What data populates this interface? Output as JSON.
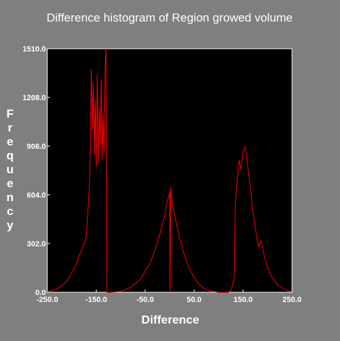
{
  "chart_data": {
    "type": "line",
    "title": "Difference histogram of Region growed volume",
    "x_label": "Difference",
    "y_label": "Frequency",
    "xlim": [
      -250,
      250
    ],
    "ylim": [
      0,
      1510
    ],
    "xticks": [
      {
        "value": -250,
        "label": "-250.0"
      },
      {
        "value": -150,
        "label": "-150.0"
      },
      {
        "value": -50,
        "label": "-50.0"
      },
      {
        "value": 50,
        "label": "50.0"
      },
      {
        "value": 150,
        "label": "150.0"
      },
      {
        "value": 250,
        "label": "250.0"
      }
    ],
    "yticks": [
      {
        "value": 0,
        "label": "0.0"
      },
      {
        "value": 302,
        "label": "302.0"
      },
      {
        "value": 604,
        "label": "604.0"
      },
      {
        "value": 906,
        "label": "906.0"
      },
      {
        "value": 1208,
        "label": "1208.0"
      },
      {
        "value": 1510,
        "label": "1510.0"
      }
    ],
    "x": [
      -250,
      -240,
      -230,
      -220,
      -210,
      -200,
      -190,
      -185,
      -180,
      -175,
      -170,
      -167,
      -164,
      -162,
      -160,
      -158,
      -156,
      -154,
      -152,
      -150,
      -148,
      -146,
      -144,
      -142,
      -140,
      -138,
      -136,
      -134,
      -132,
      -130,
      -128,
      -120,
      -100,
      -80,
      -60,
      -40,
      -30,
      -20,
      -10,
      -5,
      0,
      1,
      2,
      5,
      10,
      20,
      30,
      40,
      50,
      60,
      70,
      80,
      90,
      100,
      120,
      125,
      130,
      132,
      134,
      138,
      142,
      146,
      150,
      154,
      158,
      162,
      166,
      170,
      174,
      178,
      182,
      186,
      190,
      194,
      200,
      210,
      220,
      230,
      240,
      250
    ],
    "series": [
      {
        "name": "Frequency",
        "color": "#ff0000",
        "values": [
          5,
          10,
          20,
          40,
          70,
          120,
          180,
          230,
          260,
          300,
          350,
          500,
          650,
          900,
          1380,
          1000,
          1300,
          850,
          1200,
          780,
          1350,
          800,
          1150,
          900,
          1320,
          820,
          1100,
          850,
          1380,
          1510,
          0,
          0,
          5,
          30,
          80,
          180,
          260,
          360,
          480,
          560,
          620,
          0,
          650,
          560,
          480,
          340,
          230,
          150,
          90,
          50,
          25,
          10,
          5,
          0,
          0,
          10,
          60,
          100,
          550,
          700,
          820,
          760,
          880,
          900,
          820,
          720,
          620,
          500,
          420,
          340,
          280,
          320,
          270,
          220,
          150,
          90,
          50,
          25,
          10,
          5
        ]
      }
    ]
  }
}
